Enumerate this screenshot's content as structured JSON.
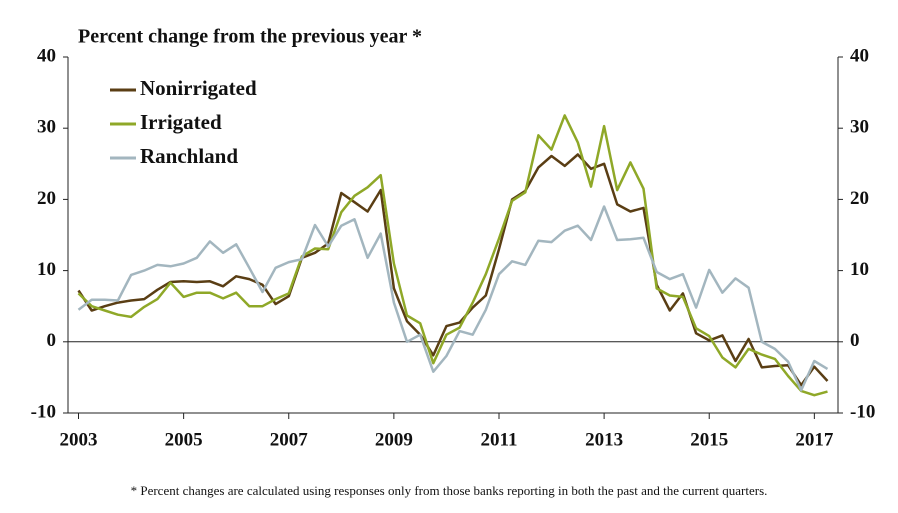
{
  "chart_data": {
    "type": "line",
    "title": "Percent change from the previous year *",
    "footnote": "* Percent changes are calculated using responses only from those banks reporting in both the past and the current quarters.",
    "x": [
      2003,
      2003.25,
      2003.5,
      2003.75,
      2004,
      2004.25,
      2004.5,
      2004.75,
      2005,
      2005.25,
      2005.5,
      2005.75,
      2006,
      2006.25,
      2006.5,
      2006.75,
      2007,
      2007.25,
      2007.5,
      2007.75,
      2008,
      2008.25,
      2008.5,
      2008.75,
      2009,
      2009.25,
      2009.5,
      2009.75,
      2010,
      2010.25,
      2010.5,
      2010.75,
      2011,
      2011.25,
      2011.5,
      2011.75,
      2012,
      2012.25,
      2012.5,
      2012.75,
      2013,
      2013.25,
      2013.5,
      2013.75,
      2014,
      2014.25,
      2014.5,
      2014.75,
      2015,
      2015.25,
      2015.5,
      2015.75,
      2016,
      2016.25,
      2016.5,
      2016.75,
      2017,
      2017.25
    ],
    "series": [
      {
        "name": "Nonirrigated",
        "color": "#5a3e14",
        "values": [
          7.2,
          4.4,
          5.0,
          5.5,
          5.8,
          6.0,
          7.3,
          8.4,
          8.5,
          8.4,
          8.5,
          7.8,
          9.2,
          8.8,
          8.0,
          5.3,
          6.4,
          11.8,
          12.5,
          13.8,
          20.9,
          19.6,
          18.3,
          21.3,
          7.5,
          2.9,
          1.0,
          -1.9,
          2.2,
          2.7,
          4.8,
          6.5,
          13.0,
          20.0,
          21.2,
          24.5,
          26.1,
          24.7,
          26.3,
          24.3,
          25.0,
          19.3,
          18.3,
          18.8,
          8.0,
          4.4,
          6.8,
          1.2,
          0.2,
          0.9,
          -2.7,
          0.4,
          -3.6,
          -3.4,
          -3.3,
          -6.1,
          -3.5,
          -5.5
        ]
      },
      {
        "name": "Irrigated",
        "color": "#8fa828",
        "values": [
          6.8,
          5.0,
          4.4,
          3.8,
          3.5,
          4.9,
          6.0,
          8.3,
          6.3,
          6.9,
          6.9,
          6.1,
          6.9,
          5.0,
          5.0,
          6.0,
          6.8,
          12.0,
          13.1,
          13.0,
          18.2,
          20.5,
          21.7,
          23.4,
          11.0,
          3.7,
          2.6,
          -3.0,
          1.0,
          2.0,
          5.5,
          9.5,
          14.5,
          19.8,
          21.0,
          29.0,
          27.0,
          31.8,
          28.0,
          21.8,
          30.3,
          21.3,
          25.2,
          21.5,
          7.5,
          6.5,
          6.3,
          1.9,
          0.8,
          -2.2,
          -3.6,
          -1.0,
          -1.8,
          -2.4,
          -4.8,
          -6.9,
          -7.5,
          -7.0
        ]
      },
      {
        "name": "Ranchland",
        "color": "#a3b6bf",
        "values": [
          4.5,
          5.9,
          5.9,
          5.8,
          9.4,
          10.0,
          10.8,
          10.6,
          11.0,
          11.8,
          14.1,
          12.5,
          13.7,
          10.4,
          7.0,
          10.4,
          11.2,
          11.6,
          16.4,
          13.4,
          16.3,
          17.2,
          11.8,
          15.2,
          5.5,
          0.0,
          1.0,
          -4.2,
          -2.0,
          1.5,
          1.0,
          4.5,
          9.5,
          11.3,
          10.8,
          14.2,
          14.0,
          15.6,
          16.3,
          14.3,
          19.0,
          14.3,
          14.4,
          14.6,
          9.8,
          8.8,
          9.5,
          4.8,
          10.1,
          6.9,
          8.9,
          7.6,
          0.0,
          -1.0,
          -2.8,
          -6.8,
          -2.7,
          -3.8
        ]
      }
    ],
    "xlim": [
      2002.8,
      2017.45
    ],
    "xticks": [
      2003,
      2005,
      2007,
      2009,
      2011,
      2013,
      2015,
      2017
    ],
    "ylim": [
      -10,
      40
    ],
    "yticks": [
      -10,
      0,
      10,
      20,
      30,
      40
    ]
  }
}
